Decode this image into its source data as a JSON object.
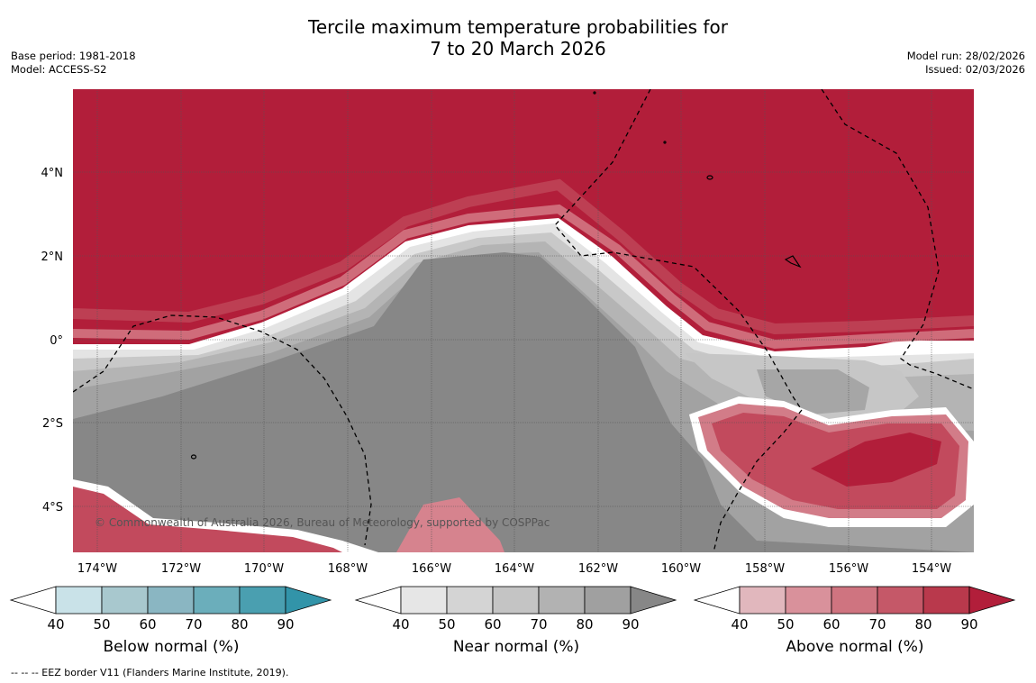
{
  "title_line1": "Tercile maximum temperature probabilities for",
  "title_line2": "7 to 20 March 2026",
  "base_period": "Base period: 1981-2018",
  "model": "Model: ACCESS-S2",
  "model_run": "Model run: 28/02/2026",
  "issued": "Issued: 02/03/2026",
  "copyright": "© Commonwealth of Australia 2026, Bureau of Meteorology, supported by COSPPac",
  "footer": "-- -- -- EEZ border V11 (Flanders Marine Institute, 2019).",
  "map": {
    "lon_labels": [
      "174°W",
      "172°W",
      "170°W",
      "168°W",
      "166°W",
      "164°W",
      "162°W",
      "160°W",
      "158°W",
      "156°W",
      "154°W"
    ],
    "lat_labels": [
      "4°N",
      "2°N",
      "0°",
      "2°S",
      "4°S"
    ],
    "region_categories": {
      "north_of_equator": "Above normal",
      "central_band": "Near normal",
      "southeast_pocket": "Above normal",
      "southwest_edge": "Above normal"
    }
  },
  "colorbars": [
    {
      "label": "Below normal (%)",
      "ticks": [
        "40",
        "50",
        "60",
        "70",
        "80",
        "90"
      ],
      "colors": [
        "#ffffff",
        "#c9e2e8",
        "#a8c8ce",
        "#8ab6c2",
        "#6baebb",
        "#4a9fb0",
        "#3294a9"
      ]
    },
    {
      "label": "Near normal (%)",
      "ticks": [
        "40",
        "50",
        "60",
        "70",
        "80",
        "90"
      ],
      "colors": [
        "#ffffff",
        "#e6e6e6",
        "#d4d4d4",
        "#c4c4c4",
        "#b2b2b2",
        "#a0a0a0",
        "#878787"
      ]
    },
    {
      "label": "Above normal (%)",
      "ticks": [
        "40",
        "50",
        "60",
        "70",
        "80",
        "90"
      ],
      "colors": [
        "#ffffff",
        "#e1b7bd",
        "#d9919b",
        "#cf7480",
        "#c55868",
        "#b9394c",
        "#b21e3a"
      ]
    }
  ]
}
